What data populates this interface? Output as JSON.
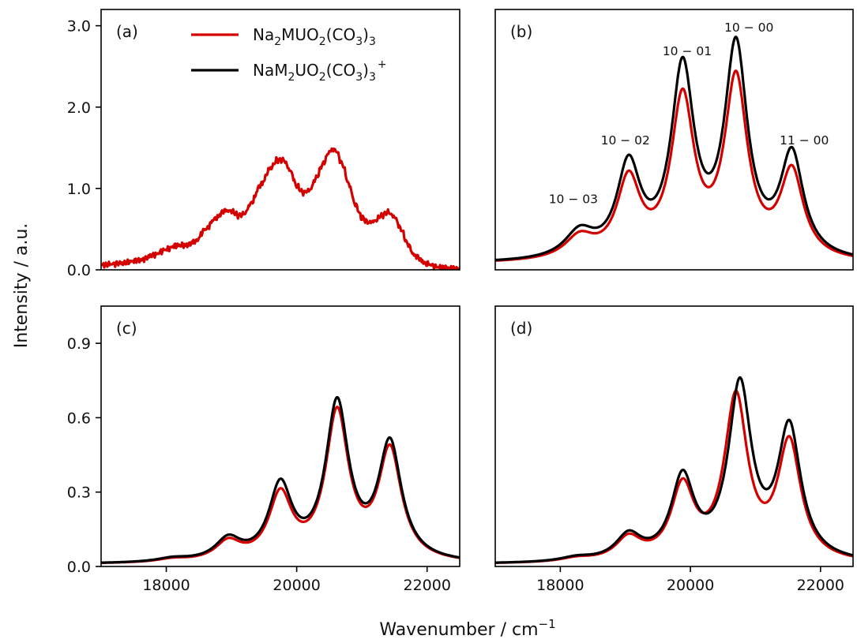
{
  "figure": {
    "ylabel": "Intensity / a.u.",
    "xlabel_main": "Wavenumber / cm",
    "xlabel_sup": "−1"
  },
  "legend": {
    "placement": "top-center of panel (a)",
    "entries": [
      {
        "base": "Na",
        "parts": [
          [
            "2",
            "sub"
          ],
          [
            "MUO",
            "n"
          ],
          [
            "2",
            "sub"
          ],
          [
            "(CO",
            "n"
          ],
          [
            "3",
            "sub"
          ],
          [
            ")",
            "n"
          ],
          [
            "3",
            "sub"
          ]
        ],
        "color": "#d40000"
      },
      {
        "base": "NaM",
        "parts": [
          [
            "2",
            "sub"
          ],
          [
            "UO",
            "n"
          ],
          [
            "2",
            "sub"
          ],
          [
            "(CO",
            "n"
          ],
          [
            "3",
            "sub"
          ],
          [
            ")",
            "n"
          ],
          [
            "3",
            "sub"
          ],
          [
            "+",
            "sup"
          ]
        ],
        "color": "#000000"
      }
    ]
  },
  "chart_data": [
    {
      "panel_label": "(a)",
      "type": "line",
      "xlim": [
        17000,
        22500
      ],
      "ylim": [
        0,
        3.2
      ],
      "yticks": [
        0.0,
        1.0,
        2.0,
        3.0
      ],
      "ytick_labels": [
        "0.0",
        "1.0",
        "2.0",
        "3.0"
      ],
      "xticks": [],
      "grid": false,
      "series": [
        {
          "name": "Na₂MUO₂(CO₃)₃",
          "color": "#d40000",
          "noisy": true,
          "x": [
            17000,
            17300,
            17600,
            17800,
            18000,
            18150,
            18300,
            18450,
            18600,
            18750,
            18900,
            19000,
            19100,
            19200,
            19300,
            19450,
            19600,
            19700,
            19800,
            19900,
            20000,
            20100,
            20200,
            20300,
            20400,
            20500,
            20550,
            20600,
            20700,
            20800,
            20900,
            21000,
            21100,
            21200,
            21300,
            21400,
            21500,
            21600,
            21700,
            21800,
            22000,
            22200,
            22500
          ],
          "y": [
            0.06,
            0.08,
            0.12,
            0.18,
            0.25,
            0.3,
            0.3,
            0.35,
            0.5,
            0.63,
            0.73,
            0.72,
            0.67,
            0.69,
            0.82,
            1.05,
            1.25,
            1.35,
            1.35,
            1.22,
            1.03,
            0.95,
            0.98,
            1.13,
            1.3,
            1.45,
            1.48,
            1.47,
            1.3,
            1.05,
            0.8,
            0.64,
            0.58,
            0.6,
            0.67,
            0.71,
            0.65,
            0.5,
            0.32,
            0.18,
            0.07,
            0.03,
            0.01
          ]
        }
      ]
    },
    {
      "panel_label": "(b)",
      "type": "line",
      "xlim": [
        17000,
        22500
      ],
      "ylim": [
        0,
        3.2
      ],
      "yticks": [],
      "xticks": [],
      "grid": false,
      "annotations": [
        {
          "text": "10 − 03",
          "x": 18200,
          "y": 0.82
        },
        {
          "text": "10 − 02",
          "x": 19000,
          "y": 1.54
        },
        {
          "text": "10 − 01",
          "x": 19950,
          "y": 2.64
        },
        {
          "text": "10 − 00",
          "x": 20900,
          "y": 2.93
        },
        {
          "text": "11 − 00",
          "x": 21750,
          "y": 1.54
        }
      ],
      "series": [
        {
          "name": "Na₂MUO₂(CO₃)₃",
          "color": "#d40000",
          "peaks": [
            [
              18300,
              0.27,
              280
            ],
            [
              19050,
              0.95,
              220
            ],
            [
              19880,
              1.93,
              215
            ],
            [
              20700,
              2.17,
              215
            ],
            [
              21560,
              1.05,
              215
            ]
          ],
          "base": 0.07
        },
        {
          "name": "NaM₂UO₂(CO₃)₃⁺",
          "color": "#000000",
          "peaks": [
            [
              18300,
              0.32,
              280
            ],
            [
              19050,
              1.11,
              220
            ],
            [
              19880,
              2.28,
              215
            ],
            [
              20700,
              2.55,
              215
            ],
            [
              21560,
              1.24,
              215
            ]
          ],
          "base": 0.07
        }
      ]
    },
    {
      "panel_label": "(c)",
      "type": "line",
      "xlim": [
        17000,
        22500
      ],
      "ylim": [
        0,
        1.05
      ],
      "yticks": [
        0.0,
        0.3,
        0.6,
        0.9
      ],
      "ytick_labels": [
        "0.0",
        "0.3",
        "0.6",
        "0.9"
      ],
      "xticks": [
        18000,
        20000,
        22000
      ],
      "xtick_labels": [
        "18000",
        "20000",
        "22000"
      ],
      "grid": false,
      "series": [
        {
          "name": "Na₂MUO₂(CO₃)₃",
          "color": "#d40000",
          "peaks": [
            [
              18100,
              0.012,
              300
            ],
            [
              18950,
              0.075,
              240
            ],
            [
              19750,
              0.26,
              215
            ],
            [
              20620,
              0.59,
              215
            ],
            [
              21430,
              0.44,
              215
            ]
          ],
          "base": 0.008
        },
        {
          "name": "NaM₂UO₂(CO₃)₃⁺",
          "color": "#000000",
          "peaks": [
            [
              18100,
              0.014,
              300
            ],
            [
              18950,
              0.085,
              240
            ],
            [
              19750,
              0.295,
              215
            ],
            [
              20620,
              0.625,
              215
            ],
            [
              21430,
              0.465,
              215
            ]
          ],
          "base": 0.008
        }
      ]
    },
    {
      "panel_label": "(d)",
      "type": "line",
      "xlim": [
        17000,
        22500
      ],
      "ylim": [
        0,
        1.05
      ],
      "yticks": [],
      "xticks": [
        18000,
        20000,
        22000
      ],
      "xtick_labels": [
        "18000",
        "20000",
        "22000"
      ],
      "grid": false,
      "series": [
        {
          "name": "Na₂MUO₂(CO₃)₃",
          "color": "#d40000",
          "peaks": [
            [
              18250,
              0.014,
              300
            ],
            [
              19050,
              0.09,
              240
            ],
            [
              19880,
              0.29,
              215
            ],
            [
              20700,
              0.65,
              215
            ],
            [
              21520,
              0.47,
              215
            ]
          ],
          "base": 0.008
        },
        {
          "name": "NaM₂UO₂(CO₃)₃⁺",
          "color": "#000000",
          "peaks": [
            [
              18250,
              0.016,
              300
            ],
            [
              19050,
              0.1,
              240
            ],
            [
              19880,
              0.325,
              215
            ],
            [
              20760,
              0.695,
              215
            ],
            [
              21520,
              0.525,
              215
            ]
          ],
          "base": 0.008
        }
      ]
    }
  ]
}
